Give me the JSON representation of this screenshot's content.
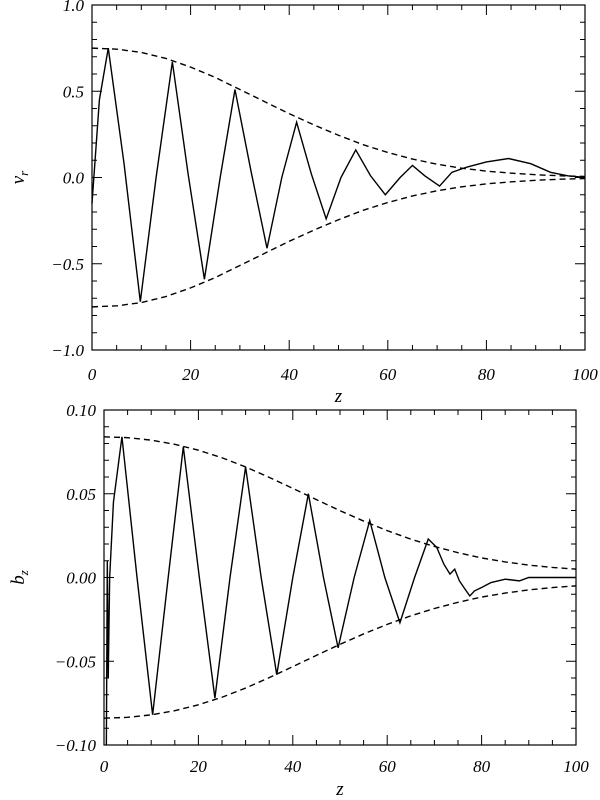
{
  "chart_data": [
    {
      "type": "line",
      "ylabel": "v",
      "ylabel_sub": "r",
      "xlabel": "z",
      "xlim": [
        0,
        100
      ],
      "ylim": [
        -1.0,
        1.0
      ],
      "xticks": [
        0,
        20,
        40,
        60,
        80,
        100
      ],
      "xtick_labels": [
        "0",
        "20",
        "40",
        "60",
        "80",
        "100"
      ],
      "yticks": [
        -1.0,
        -0.5,
        0.0,
        0.5,
        1.0
      ],
      "ytick_labels": [
        "−1.0",
        "−0.5",
        "0.0",
        "0.5",
        "1.0"
      ],
      "series": [
        {
          "style": "solid",
          "x": [
            0,
            1.5,
            3.3,
            6.5,
            9.8,
            13,
            16.3,
            19.5,
            22.8,
            26,
            29,
            32.3,
            35.5,
            38.5,
            41.5,
            44.5,
            47.5,
            50.5,
            53.5,
            56.5,
            59.5,
            62.5,
            65,
            67.5,
            70.5,
            73,
            76,
            80,
            84.5,
            89,
            93,
            96.5,
            100
          ],
          "y": [
            -0.15,
            0.45,
            0.75,
            0.08,
            -0.72,
            0.0,
            0.67,
            0.02,
            -0.59,
            0.0,
            0.51,
            0.03,
            -0.41,
            0.0,
            0.32,
            0.02,
            -0.24,
            0.0,
            0.16,
            0.01,
            -0.1,
            0.0,
            0.07,
            0.01,
            -0.05,
            0.03,
            0.06,
            0.09,
            0.11,
            0.08,
            0.03,
            0.01,
            0.0
          ]
        },
        {
          "style": "dashed",
          "x": [
            0,
            5,
            10,
            15,
            20,
            25,
            30,
            35,
            40,
            45,
            50,
            55,
            60,
            65,
            70,
            75,
            80,
            85,
            90,
            95,
            100
          ],
          "y": [
            0.75,
            0.744,
            0.725,
            0.69,
            0.64,
            0.58,
            0.51,
            0.44,
            0.37,
            0.305,
            0.245,
            0.19,
            0.145,
            0.107,
            0.077,
            0.054,
            0.037,
            0.025,
            0.016,
            0.01,
            0.006
          ]
        },
        {
          "style": "dashed",
          "x": [
            0,
            5,
            10,
            15,
            20,
            25,
            30,
            35,
            40,
            45,
            50,
            55,
            60,
            65,
            70,
            75,
            80,
            85,
            90,
            95,
            100
          ],
          "y": [
            -0.75,
            -0.744,
            -0.725,
            -0.69,
            -0.64,
            -0.58,
            -0.51,
            -0.44,
            -0.37,
            -0.305,
            -0.245,
            -0.19,
            -0.145,
            -0.107,
            -0.077,
            -0.054,
            -0.037,
            -0.025,
            -0.016,
            -0.01,
            -0.006
          ]
        }
      ]
    },
    {
      "type": "line",
      "ylabel": "b",
      "ylabel_sub": "z",
      "xlabel": "z",
      "xlim": [
        0,
        100
      ],
      "ylim": [
        -0.1,
        0.1
      ],
      "xticks": [
        0,
        20,
        40,
        60,
        80,
        100
      ],
      "xtick_labels": [
        "0",
        "20",
        "40",
        "60",
        "80",
        "100"
      ],
      "yticks": [
        -0.1,
        -0.05,
        0.0,
        0.05,
        0.1
      ],
      "ytick_labels": [
        "−0.10",
        "−0.05",
        "0.00",
        "0.05",
        "0.10"
      ],
      "series": [
        {
          "style": "solid",
          "x": [
            0.5,
            0.7,
            0.9,
            1.2,
            2.0,
            3.8,
            7.0,
            10.3,
            13.6,
            16.8,
            20.2,
            23.5,
            26.7,
            30.0,
            33.3,
            36.6,
            40.0,
            43.3,
            46.5,
            49.6,
            53.0,
            56.3,
            59.5,
            62.7,
            65.8,
            68.7,
            70.5,
            72.0,
            73.3,
            74.3,
            75.3,
            76.5,
            77.5,
            78.5,
            80,
            82,
            85,
            88,
            90,
            95,
            100
          ],
          "y": [
            -0.1,
            0.01,
            -0.06,
            0.0,
            0.045,
            0.084,
            0.0,
            -0.082,
            0.0,
            0.078,
            0.0,
            -0.072,
            0.0,
            0.066,
            0.0,
            -0.058,
            0.0,
            0.05,
            0.0,
            -0.042,
            0.0,
            0.034,
            0.0,
            -0.027,
            0.0,
            0.023,
            0.018,
            0.008,
            0.002,
            0.005,
            -0.002,
            -0.007,
            -0.011,
            -0.008,
            -0.006,
            -0.003,
            -0.001,
            -0.002,
            0.0,
            0.0,
            0.0
          ]
        },
        {
          "style": "dashed",
          "x": [
            0,
            5,
            10,
            15,
            20,
            25,
            30,
            35,
            40,
            45,
            50,
            55,
            60,
            65,
            70,
            75,
            80,
            85,
            90,
            95,
            100
          ],
          "y": [
            0.084,
            0.0835,
            0.082,
            0.0795,
            0.076,
            0.0715,
            0.066,
            0.0598,
            0.0532,
            0.0465,
            0.0399,
            0.0337,
            0.028,
            0.0229,
            0.0185,
            0.0148,
            0.0117,
            0.0093,
            0.0074,
            0.006,
            0.005
          ]
        },
        {
          "style": "dashed",
          "x": [
            0,
            5,
            10,
            15,
            20,
            25,
            30,
            35,
            40,
            45,
            50,
            55,
            60,
            65,
            70,
            75,
            80,
            85,
            90,
            95,
            100
          ],
          "y": [
            -0.084,
            -0.0835,
            -0.082,
            -0.0795,
            -0.076,
            -0.0715,
            -0.066,
            -0.0598,
            -0.0532,
            -0.0465,
            -0.0399,
            -0.0337,
            -0.028,
            -0.0229,
            -0.0185,
            -0.0148,
            -0.0117,
            -0.0093,
            -0.0074,
            -0.006,
            -0.005
          ]
        }
      ]
    }
  ]
}
